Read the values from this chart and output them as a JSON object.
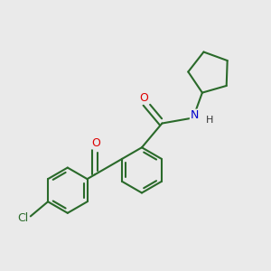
{
  "bg_color": "#eaeaea",
  "bond_color": "#2a6a2a",
  "atom_colors": {
    "O": "#dd0000",
    "N": "#0000cc",
    "Cl": "#2a6a2a",
    "H": "#333333"
  },
  "bond_lw": 1.5,
  "figsize": [
    3.0,
    3.0
  ],
  "dpi": 100,
  "xlim": [
    -3.8,
    4.8
  ],
  "ylim": [
    -3.5,
    4.5
  ]
}
